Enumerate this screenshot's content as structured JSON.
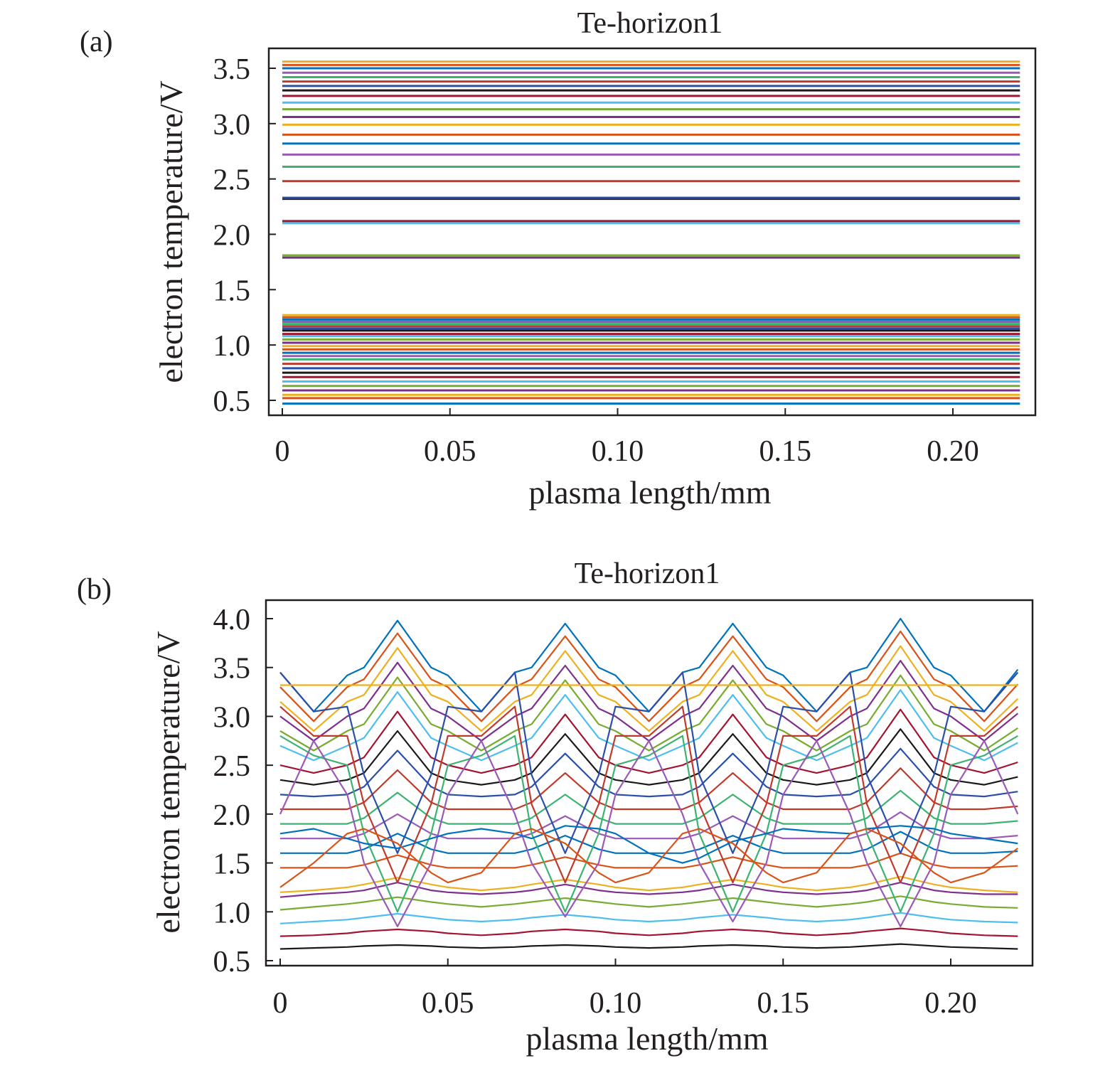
{
  "colors": [
    "#0072bd",
    "#d95319",
    "#edb120",
    "#7e2f8e",
    "#77ac30",
    "#4dbeee",
    "#a2142f",
    "#1a1a1a",
    "#2b4fa8",
    "#c0392b",
    "#3cb371",
    "#9b59b6"
  ],
  "chart_data": [
    {
      "panel": "(a)",
      "type": "line",
      "title": "Te-horizon1",
      "xlabel": "plasma length/mm",
      "ylabel": "electron temperature/V",
      "xlim": [
        0,
        0.22
      ],
      "ylim": [
        0.5,
        3.6
      ],
      "xticks": [
        0,
        0.05,
        0.1,
        0.15,
        0.2
      ],
      "xtick_labels": [
        "0",
        "0.05",
        "0.10",
        "0.15",
        "0.20"
      ],
      "yticks": [
        0.5,
        1.0,
        1.5,
        2.0,
        2.5,
        3.0,
        3.5
      ],
      "ytick_labels": [
        "0.5",
        "1.0",
        "1.5",
        "2.0",
        "2.5",
        "3.0",
        "3.5"
      ],
      "x": [
        0,
        0.22
      ],
      "constant_levels": [
        0.47,
        0.52,
        0.55,
        0.59,
        0.63,
        0.67,
        0.71,
        0.75,
        0.79,
        0.83,
        0.87,
        0.9,
        0.93,
        0.96,
        0.99,
        1.02,
        1.05,
        1.08,
        1.1,
        1.13,
        1.15,
        1.17,
        1.19,
        1.21,
        1.23,
        1.25,
        1.27,
        1.79,
        1.81,
        2.1,
        2.12,
        2.32,
        2.33,
        2.48,
        2.61,
        2.72,
        2.82,
        2.9,
        2.99,
        3.06,
        3.13,
        3.19,
        3.25,
        3.3,
        3.34,
        3.38,
        3.42,
        3.46,
        3.5,
        3.53,
        3.56
      ]
    },
    {
      "panel": "(b)",
      "type": "line",
      "title": "Te-horizon1",
      "xlabel": "plasma length/mm",
      "ylabel": "electron temperature/V",
      "xlim": [
        0,
        0.22
      ],
      "ylim": [
        0.5,
        4.0
      ],
      "xticks": [
        0,
        0.05,
        0.1,
        0.15,
        0.2
      ],
      "xtick_labels": [
        "0",
        "0.05",
        "0.10",
        "0.15",
        "0.20"
      ],
      "yticks": [
        0.5,
        1.0,
        1.5,
        2.0,
        2.5,
        3.0,
        3.5,
        4.0
      ],
      "ytick_labels": [
        "0.5",
        "1.0",
        "1.5",
        "2.0",
        "2.5",
        "3.0",
        "3.5",
        "4.0"
      ],
      "x": [
        0,
        0.01,
        0.02,
        0.025,
        0.035,
        0.045,
        0.05,
        0.06,
        0.07,
        0.075,
        0.085,
        0.095,
        0.1,
        0.11,
        0.12,
        0.125,
        0.135,
        0.145,
        0.15,
        0.16,
        0.17,
        0.175,
        0.185,
        0.195,
        0.2,
        0.21,
        0.22
      ],
      "series": [
        {
          "values": [
            3.45,
            3.05,
            3.42,
            3.5,
            3.98,
            3.5,
            3.42,
            3.05,
            3.45,
            3.5,
            3.95,
            3.5,
            3.42,
            3.05,
            3.45,
            3.5,
            3.95,
            3.5,
            3.42,
            3.05,
            3.45,
            3.5,
            4.0,
            3.5,
            3.42,
            3.05,
            3.48
          ]
        },
        {
          "values": [
            3.3,
            2.95,
            3.3,
            3.38,
            3.85,
            3.38,
            3.3,
            2.95,
            3.3,
            3.38,
            3.82,
            3.38,
            3.3,
            2.95,
            3.3,
            3.38,
            3.82,
            3.38,
            3.3,
            2.95,
            3.3,
            3.38,
            3.87,
            3.38,
            3.3,
            2.95,
            3.33
          ]
        },
        {
          "values": [
            3.15,
            2.85,
            3.15,
            3.22,
            3.7,
            3.22,
            3.15,
            2.85,
            3.15,
            3.22,
            3.67,
            3.22,
            3.15,
            2.85,
            3.15,
            3.22,
            3.67,
            3.22,
            3.15,
            2.85,
            3.15,
            3.22,
            3.72,
            3.22,
            3.15,
            2.85,
            3.18
          ]
        },
        {
          "values": [
            3.0,
            2.75,
            3.0,
            3.08,
            3.55,
            3.08,
            3.0,
            2.75,
            3.0,
            3.08,
            3.52,
            3.08,
            3.0,
            2.75,
            3.0,
            3.08,
            3.52,
            3.08,
            3.0,
            2.75,
            3.0,
            3.08,
            3.57,
            3.08,
            3.0,
            2.75,
            3.03
          ]
        },
        {
          "values": [
            2.85,
            2.65,
            2.85,
            2.92,
            3.4,
            2.92,
            2.85,
            2.65,
            2.85,
            2.92,
            3.37,
            2.92,
            2.85,
            2.65,
            2.85,
            2.92,
            3.37,
            2.92,
            2.85,
            2.65,
            2.85,
            2.92,
            3.42,
            2.92,
            2.85,
            2.65,
            2.88
          ]
        },
        {
          "values": [
            2.7,
            2.55,
            2.7,
            2.78,
            3.25,
            2.78,
            2.7,
            2.55,
            2.7,
            2.78,
            3.22,
            2.78,
            2.7,
            2.55,
            2.7,
            2.78,
            3.22,
            2.78,
            2.7,
            2.55,
            2.7,
            2.78,
            3.27,
            2.78,
            2.7,
            2.55,
            2.73
          ]
        },
        {
          "values": [
            2.5,
            2.42,
            2.5,
            2.58,
            3.05,
            2.58,
            2.5,
            2.42,
            2.5,
            2.58,
            3.02,
            2.58,
            2.5,
            2.42,
            2.5,
            2.58,
            3.02,
            2.58,
            2.5,
            2.42,
            2.5,
            2.58,
            3.07,
            2.58,
            2.5,
            2.42,
            2.53
          ]
        },
        {
          "values": [
            2.35,
            2.3,
            2.35,
            2.42,
            2.85,
            2.42,
            2.35,
            2.3,
            2.35,
            2.42,
            2.82,
            2.42,
            2.35,
            2.3,
            2.35,
            2.42,
            2.82,
            2.42,
            2.35,
            2.3,
            2.35,
            2.42,
            2.87,
            2.42,
            2.35,
            2.3,
            2.38
          ]
        },
        {
          "values": [
            2.2,
            2.18,
            2.2,
            2.28,
            2.65,
            2.28,
            2.2,
            2.18,
            2.2,
            2.28,
            2.62,
            2.28,
            2.2,
            2.18,
            2.2,
            2.28,
            2.62,
            2.28,
            2.2,
            2.18,
            2.2,
            2.28,
            2.67,
            2.28,
            2.2,
            2.18,
            2.23
          ]
        },
        {
          "values": [
            2.05,
            2.05,
            2.05,
            2.12,
            2.45,
            2.12,
            2.05,
            2.05,
            2.05,
            2.12,
            2.42,
            2.12,
            2.05,
            2.05,
            2.05,
            2.12,
            2.42,
            2.12,
            2.05,
            2.05,
            2.05,
            2.12,
            2.47,
            2.12,
            2.05,
            2.05,
            2.08
          ]
        },
        {
          "values": [
            1.9,
            1.9,
            1.9,
            1.96,
            2.22,
            1.96,
            1.9,
            1.9,
            1.9,
            1.96,
            2.2,
            1.96,
            1.9,
            1.9,
            1.9,
            1.96,
            2.2,
            1.96,
            1.9,
            1.9,
            1.9,
            1.96,
            2.24,
            1.96,
            1.9,
            1.9,
            1.93
          ]
        },
        {
          "values": [
            1.75,
            1.75,
            1.75,
            1.8,
            2.0,
            1.8,
            1.75,
            1.75,
            1.75,
            1.8,
            1.98,
            1.8,
            1.75,
            1.75,
            1.75,
            1.8,
            1.98,
            1.8,
            1.75,
            1.75,
            1.75,
            1.8,
            2.02,
            1.8,
            1.75,
            1.75,
            1.78
          ]
        },
        {
          "values": [
            1.6,
            1.6,
            1.6,
            1.64,
            1.8,
            1.64,
            1.6,
            1.6,
            1.6,
            1.64,
            1.78,
            1.64,
            1.6,
            1.6,
            1.6,
            1.64,
            1.78,
            1.64,
            1.6,
            1.6,
            1.6,
            1.64,
            1.82,
            1.64,
            1.6,
            1.6,
            1.62
          ]
        },
        {
          "values": [
            1.45,
            1.45,
            1.45,
            1.48,
            1.58,
            1.48,
            1.45,
            1.45,
            1.45,
            1.48,
            1.56,
            1.48,
            1.45,
            1.45,
            1.45,
            1.48,
            1.56,
            1.48,
            1.45,
            1.45,
            1.45,
            1.48,
            1.6,
            1.48,
            1.45,
            1.45,
            1.47
          ]
        },
        {
          "values": [
            1.2,
            1.22,
            1.25,
            1.28,
            1.35,
            1.28,
            1.25,
            1.22,
            1.25,
            1.28,
            1.33,
            1.28,
            1.25,
            1.22,
            1.25,
            1.28,
            1.33,
            1.28,
            1.25,
            1.22,
            1.25,
            1.28,
            1.36,
            1.28,
            1.25,
            1.22,
            1.2
          ]
        },
        {
          "values": [
            1.15,
            1.18,
            1.2,
            1.22,
            1.3,
            1.22,
            1.2,
            1.18,
            1.2,
            1.22,
            1.28,
            1.22,
            1.2,
            1.18,
            1.2,
            1.22,
            1.28,
            1.22,
            1.2,
            1.18,
            1.2,
            1.22,
            1.3,
            1.22,
            1.2,
            1.18,
            1.18
          ]
        },
        {
          "values": [
            1.02,
            1.05,
            1.08,
            1.1,
            1.15,
            1.1,
            1.08,
            1.05,
            1.08,
            1.1,
            1.14,
            1.1,
            1.08,
            1.05,
            1.08,
            1.1,
            1.14,
            1.1,
            1.08,
            1.05,
            1.08,
            1.1,
            1.16,
            1.1,
            1.08,
            1.05,
            1.04
          ]
        },
        {
          "values": [
            0.88,
            0.9,
            0.92,
            0.94,
            0.98,
            0.94,
            0.92,
            0.9,
            0.92,
            0.94,
            0.97,
            0.94,
            0.92,
            0.9,
            0.92,
            0.94,
            0.97,
            0.94,
            0.92,
            0.9,
            0.92,
            0.94,
            0.99,
            0.94,
            0.92,
            0.9,
            0.89
          ]
        },
        {
          "values": [
            0.75,
            0.76,
            0.78,
            0.8,
            0.82,
            0.8,
            0.78,
            0.76,
            0.78,
            0.8,
            0.82,
            0.8,
            0.78,
            0.76,
            0.78,
            0.8,
            0.82,
            0.8,
            0.78,
            0.76,
            0.78,
            0.8,
            0.83,
            0.8,
            0.78,
            0.76,
            0.75
          ]
        },
        {
          "values": [
            0.62,
            0.63,
            0.64,
            0.65,
            0.66,
            0.65,
            0.64,
            0.63,
            0.64,
            0.65,
            0.66,
            0.65,
            0.64,
            0.63,
            0.64,
            0.65,
            0.66,
            0.65,
            0.64,
            0.63,
            0.64,
            0.65,
            0.67,
            0.65,
            0.64,
            0.63,
            0.62
          ]
        },
        {
          "values": [
            3.45,
            3.05,
            3.1,
            2.4,
            1.6,
            2.4,
            3.1,
            3.05,
            3.45,
            2.4,
            1.6,
            2.4,
            3.1,
            3.05,
            3.45,
            2.4,
            1.6,
            2.4,
            3.1,
            3.05,
            3.45,
            2.4,
            1.6,
            2.4,
            3.1,
            3.05,
            3.45
          ]
        },
        {
          "values": [
            3.1,
            2.8,
            2.8,
            2.1,
            1.3,
            2.1,
            2.8,
            2.8,
            3.1,
            2.1,
            1.3,
            2.1,
            2.8,
            2.8,
            3.1,
            2.1,
            1.3,
            2.1,
            2.8,
            2.8,
            3.1,
            2.1,
            1.3,
            2.1,
            2.8,
            2.8,
            3.1
          ]
        },
        {
          "values": [
            2.8,
            2.6,
            2.5,
            1.8,
            1.0,
            1.8,
            2.5,
            2.6,
            2.8,
            1.8,
            1.0,
            1.8,
            2.5,
            2.6,
            2.8,
            1.8,
            1.0,
            1.8,
            2.5,
            2.6,
            2.8,
            1.8,
            1.0,
            1.8,
            2.5,
            2.6,
            2.8
          ]
        },
        {
          "values": [
            2.0,
            2.75,
            2.2,
            1.5,
            0.85,
            1.5,
            2.2,
            2.75,
            2.0,
            1.5,
            0.95,
            1.5,
            2.2,
            2.75,
            2.0,
            1.5,
            0.9,
            1.5,
            2.2,
            2.75,
            2.0,
            1.5,
            0.85,
            1.5,
            2.2,
            2.75,
            2.0
          ]
        },
        {
          "values": [
            1.8,
            1.85,
            1.75,
            1.7,
            1.65,
            1.75,
            1.8,
            1.85,
            1.8,
            1.75,
            1.88,
            1.85,
            1.8,
            1.6,
            1.5,
            1.55,
            1.72,
            1.8,
            1.85,
            1.82,
            1.8,
            1.85,
            1.88,
            1.85,
            1.8,
            1.75,
            1.7
          ]
        },
        {
          "values": [
            1.25,
            1.5,
            1.8,
            1.85,
            1.7,
            1.4,
            1.3,
            1.4,
            1.8,
            1.85,
            1.7,
            1.4,
            1.3,
            1.4,
            1.8,
            1.85,
            1.7,
            1.4,
            1.3,
            1.4,
            1.8,
            1.85,
            1.7,
            1.4,
            1.3,
            1.4,
            1.65
          ]
        },
        {
          "values": [
            3.32,
            3.32,
            3.32,
            3.32,
            3.32,
            3.32,
            3.32,
            3.32,
            3.32,
            3.32,
            3.32,
            3.32,
            3.32,
            3.32,
            3.32,
            3.32,
            3.32,
            3.32,
            3.32,
            3.32,
            3.32,
            3.32,
            3.32,
            3.32,
            3.32,
            3.32,
            3.32
          ]
        }
      ]
    }
  ]
}
